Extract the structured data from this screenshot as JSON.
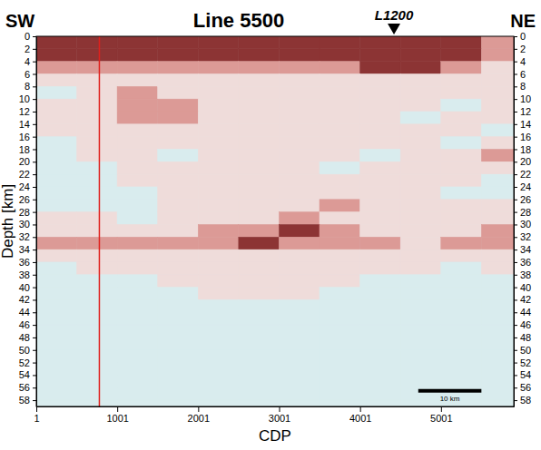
{
  "chart_data": {
    "type": "heatmap",
    "title": "Line 5500",
    "left_label": "SW",
    "right_label": "NE",
    "x_label": "CDP",
    "y_label": "Depth [km]",
    "xlim": [
      1,
      5900
    ],
    "ylim": [
      0,
      59
    ],
    "xticks": [
      1,
      1001,
      2001,
      3001,
      4001,
      5001
    ],
    "yticks": [
      0,
      2,
      4,
      6,
      8,
      10,
      12,
      14,
      16,
      18,
      20,
      22,
      24,
      26,
      28,
      30,
      32,
      34,
      36,
      38,
      40,
      42,
      44,
      46,
      48,
      50,
      52,
      54,
      56,
      58
    ],
    "marker_annotation": {
      "text": "L1200",
      "x": 4420
    },
    "vlines": [
      {
        "x": 780,
        "color": "#e0201c"
      }
    ],
    "scale_bar": {
      "label": "10 km",
      "x0": 4720,
      "x1": 5500,
      "y": 56.5
    },
    "x_bins": [
      1,
      500,
      1000,
      1500,
      2000,
      2500,
      3000,
      3500,
      4000,
      4500,
      5000,
      5500,
      5900
    ],
    "y_bins": [
      0,
      2,
      4,
      6,
      8,
      10,
      12,
      14,
      16,
      18,
      20,
      22,
      24,
      26,
      28,
      30,
      32,
      34,
      36,
      38,
      40,
      42,
      44,
      46,
      48,
      50,
      52,
      54,
      56,
      58,
      59
    ],
    "zlim": [
      0,
      3
    ],
    "values": [
      [
        3,
        3,
        3,
        3,
        3,
        3,
        3,
        3,
        3,
        3,
        3,
        2
      ],
      [
        3,
        3,
        3,
        3,
        3,
        3,
        3,
        3,
        3,
        3,
        3,
        2
      ],
      [
        2,
        2,
        2,
        2,
        2,
        2,
        2,
        2,
        3,
        3,
        2,
        1
      ],
      [
        1,
        1,
        1,
        1,
        1,
        1,
        1,
        1,
        1,
        1,
        1,
        1
      ],
      [
        0,
        1,
        2,
        1,
        1,
        1,
        1,
        1,
        1,
        1,
        1,
        1
      ],
      [
        1,
        1,
        2,
        2,
        1,
        1,
        1,
        1,
        1,
        1,
        0,
        1
      ],
      [
        1,
        1,
        2,
        2,
        1,
        1,
        1,
        1,
        1,
        0,
        1,
        1
      ],
      [
        1,
        1,
        1,
        1,
        1,
        1,
        1,
        1,
        1,
        1,
        1,
        0
      ],
      [
        0,
        1,
        1,
        1,
        1,
        1,
        1,
        1,
        1,
        1,
        0,
        1
      ],
      [
        0,
        1,
        1,
        0,
        1,
        1,
        1,
        1,
        0,
        1,
        1,
        2
      ],
      [
        0,
        0,
        1,
        1,
        1,
        1,
        1,
        0,
        1,
        1,
        1,
        1
      ],
      [
        0,
        0,
        1,
        1,
        1,
        1,
        1,
        1,
        1,
        1,
        1,
        0
      ],
      [
        0,
        0,
        0,
        1,
        1,
        1,
        1,
        1,
        1,
        1,
        0,
        0
      ],
      [
        0,
        0,
        0,
        1,
        1,
        1,
        1,
        2,
        1,
        1,
        1,
        1
      ],
      [
        1,
        1,
        0,
        1,
        1,
        1,
        2,
        1,
        1,
        1,
        1,
        1
      ],
      [
        1,
        1,
        1,
        1,
        2,
        2,
        3,
        2,
        1,
        1,
        1,
        2
      ],
      [
        2,
        2,
        2,
        2,
        2,
        3,
        2,
        2,
        2,
        1,
        2,
        2
      ],
      [
        1,
        1,
        1,
        1,
        1,
        1,
        1,
        1,
        1,
        1,
        1,
        1
      ],
      [
        0,
        1,
        1,
        1,
        1,
        1,
        1,
        1,
        1,
        1,
        0,
        1
      ],
      [
        0,
        0,
        0,
        1,
        1,
        1,
        1,
        1,
        0,
        0,
        0,
        0
      ],
      [
        0,
        0,
        0,
        0,
        1,
        1,
        1,
        0,
        0,
        0,
        0,
        0
      ],
      [
        0,
        0,
        0,
        0,
        0,
        0,
        0,
        0,
        0,
        0,
        0,
        0
      ],
      [
        0,
        0,
        0,
        0,
        0,
        0,
        0,
        0,
        0,
        0,
        0,
        0
      ],
      [
        0,
        0,
        0,
        0,
        0,
        0,
        0,
        0,
        0,
        0,
        0,
        0
      ],
      [
        0,
        0,
        0,
        0,
        0,
        0,
        0,
        0,
        0,
        0,
        0,
        0
      ],
      [
        0,
        0,
        0,
        0,
        0,
        0,
        0,
        0,
        0,
        0,
        0,
        0
      ],
      [
        0,
        0,
        0,
        0,
        0,
        0,
        0,
        0,
        0,
        0,
        0,
        0
      ],
      [
        0,
        0,
        0,
        0,
        0,
        0,
        0,
        0,
        0,
        0,
        0,
        0
      ],
      [
        0,
        0,
        0,
        0,
        0,
        0,
        0,
        0,
        0,
        0,
        0,
        0
      ],
      [
        0,
        0,
        0,
        0,
        0,
        0,
        0,
        0,
        0,
        0,
        0,
        0
      ]
    ]
  }
}
